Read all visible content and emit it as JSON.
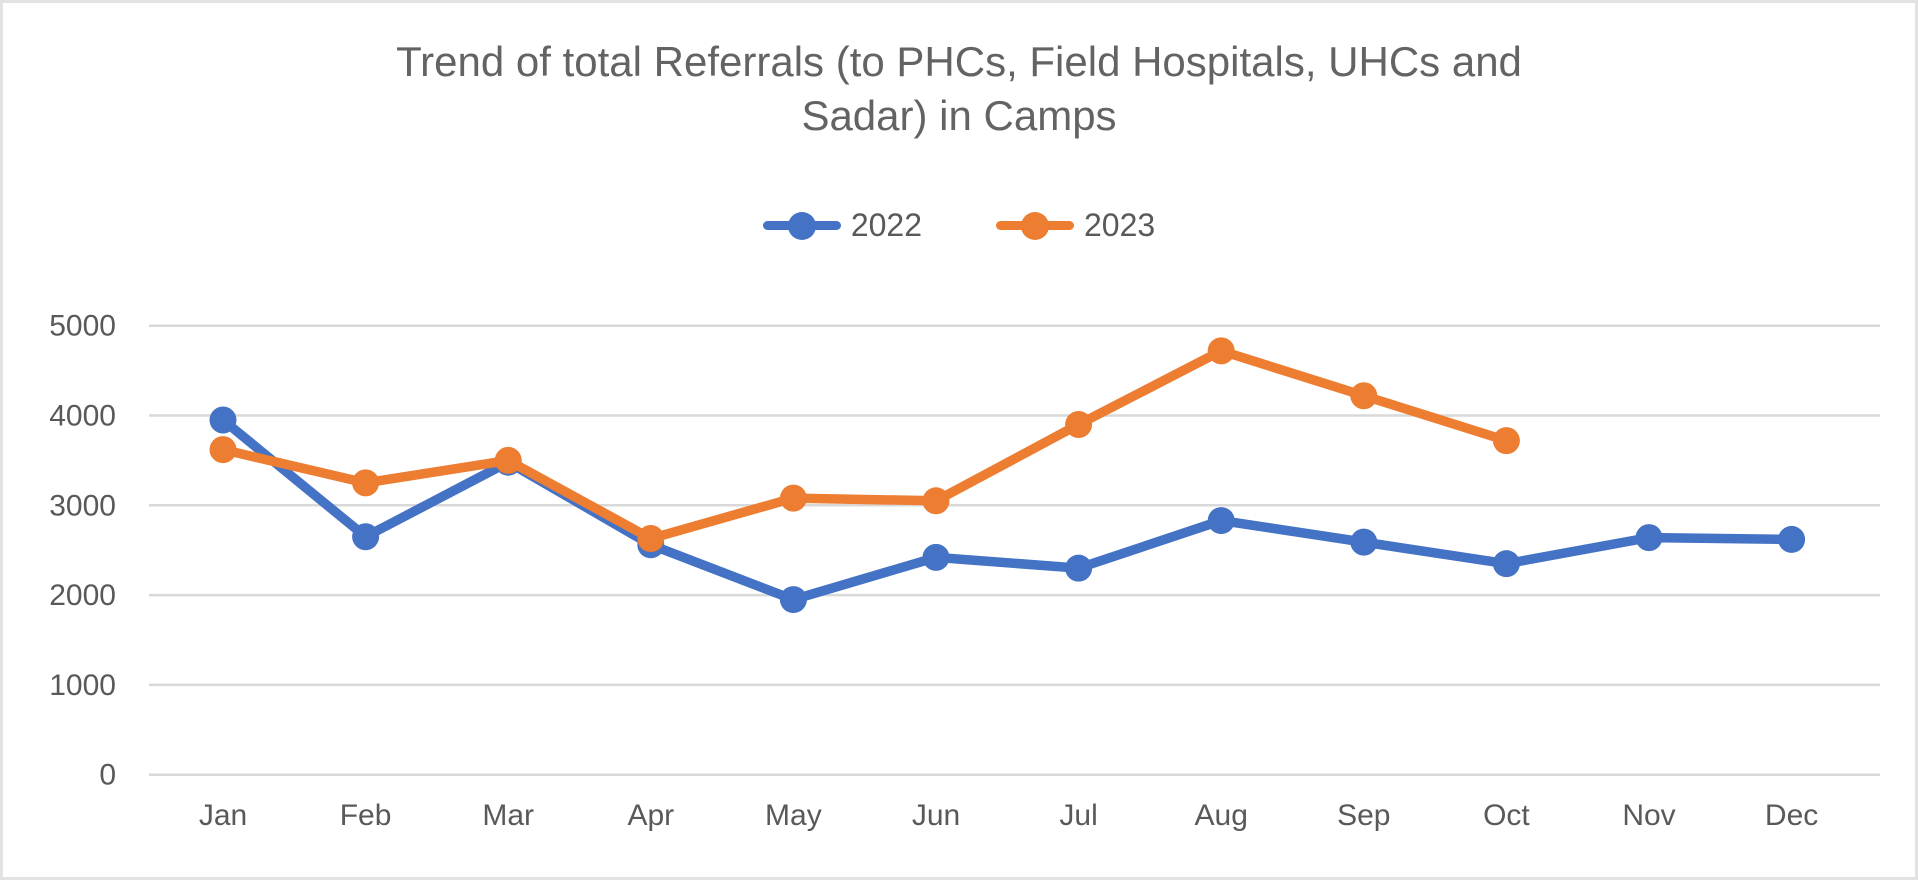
{
  "title": "Trend of total Referrals (to PHCs, Field Hospitals, UHCs and Sadar) in Camps",
  "title_lines": [
    "Trend of total Referrals (to PHCs, Field Hospitals, UHCs and",
    "Sadar) in Camps"
  ],
  "legend": [
    {
      "label": "2022",
      "color": "#4472C4"
    },
    {
      "label": "2023",
      "color": "#ED7D31"
    }
  ],
  "colors": {
    "series_2022": "#4472C4",
    "series_2023": "#ED7D31",
    "gridline": "#D9D9D9",
    "text": "#595959",
    "border": "#E2E2E2",
    "background": "#FFFFFF"
  },
  "chart_data": {
    "type": "line",
    "title": "Trend of total Referrals (to PHCs, Field Hospitals, UHCs and Sadar) in Camps",
    "categories": [
      "Jan",
      "Feb",
      "Mar",
      "Apr",
      "May",
      "Jun",
      "Jul",
      "Aug",
      "Sep",
      "Oct",
      "Nov",
      "Dec"
    ],
    "series": [
      {
        "name": "2022",
        "color": "#4472C4",
        "values": [
          3950,
          2650,
          3480,
          2560,
          1950,
          2420,
          2300,
          2830,
          2590,
          2350,
          2640,
          2620
        ]
      },
      {
        "name": "2023",
        "color": "#ED7D31",
        "values": [
          3620,
          3250,
          3500,
          2630,
          3080,
          3050,
          3900,
          4720,
          4220,
          3720,
          null,
          null
        ]
      }
    ],
    "xlabel": "",
    "ylabel": "",
    "ylim": [
      0,
      5000
    ],
    "ytick_step": 1000,
    "yticks": [
      0,
      1000,
      2000,
      3000,
      4000,
      5000
    ],
    "grid": true,
    "legend_position": "top",
    "marker": "circle"
  }
}
